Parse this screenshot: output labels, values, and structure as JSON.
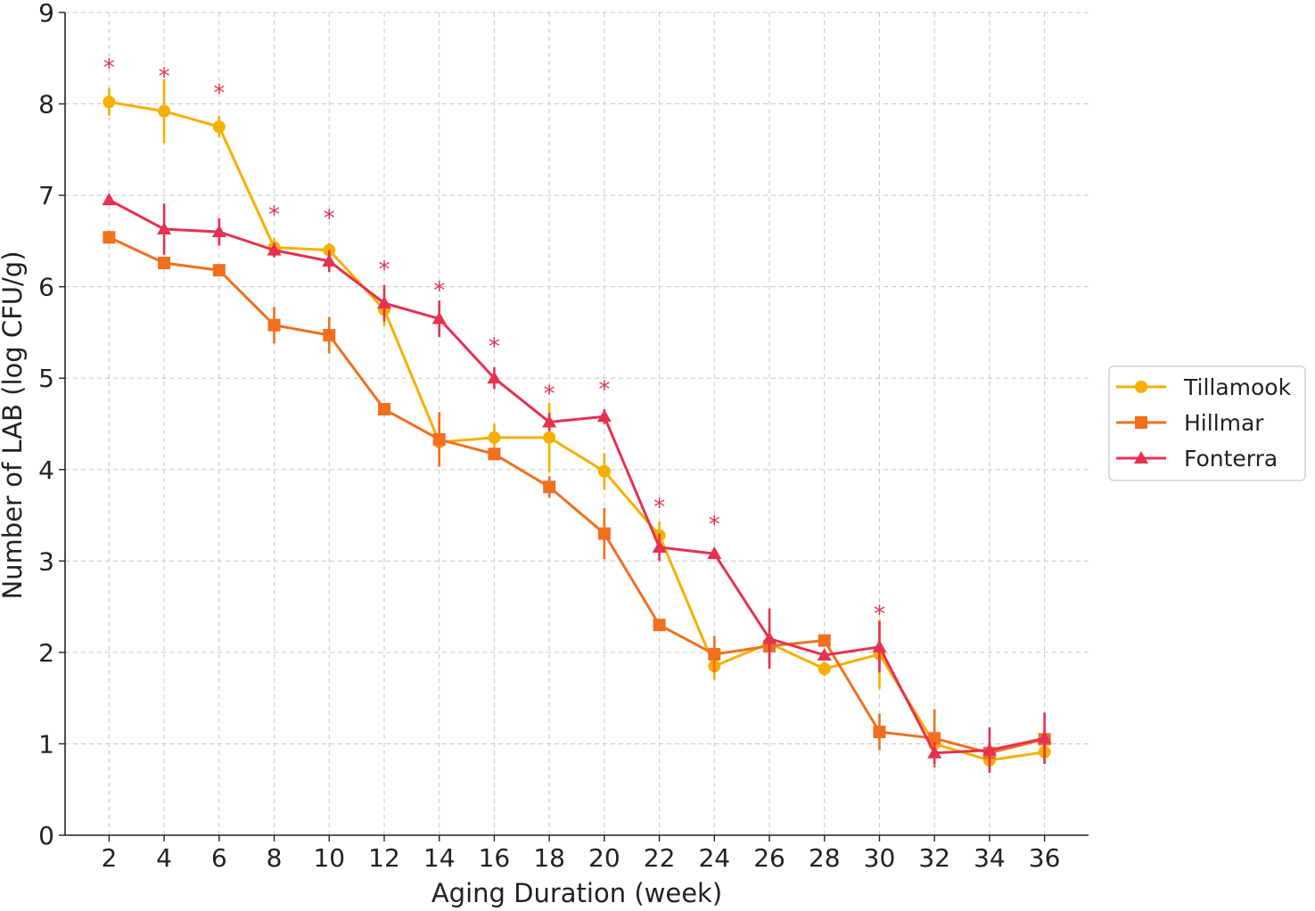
{
  "chart_data": {
    "type": "line",
    "title": "",
    "xlabel": "Aging Duration (week)",
    "ylabel": "Number of LAB (log CFU/g)",
    "x": [
      2,
      4,
      6,
      8,
      10,
      12,
      14,
      16,
      18,
      20,
      22,
      24,
      26,
      28,
      30,
      32,
      34,
      36
    ],
    "xlim": [
      0.4,
      37.6
    ],
    "ylim": [
      0,
      9
    ],
    "xticks": [
      2,
      4,
      6,
      8,
      10,
      12,
      14,
      16,
      18,
      20,
      22,
      24,
      26,
      28,
      30,
      32,
      34,
      36
    ],
    "yticks": [
      0,
      1,
      2,
      3,
      4,
      5,
      6,
      7,
      8,
      9
    ],
    "grid": true,
    "legend_position": "center-right, outside plot",
    "series": [
      {
        "name": "Tillamook",
        "color": "#f5b000",
        "marker": "circle",
        "values": [
          8.02,
          7.92,
          7.75,
          6.43,
          6.4,
          5.75,
          4.3,
          4.35,
          4.35,
          3.98,
          3.28,
          1.85,
          2.1,
          1.82,
          1.98,
          1.0,
          0.82,
          0.91
        ],
        "errors": [
          0.15,
          0.35,
          0.12,
          0.1,
          0.08,
          0.18,
          0.15,
          0.15,
          0.38,
          0.2,
          0.15,
          0.15,
          0.1,
          0.08,
          0.38,
          0.12,
          0.1,
          0.1
        ]
      },
      {
        "name": "Hillmar",
        "color": "#f07020",
        "marker": "square",
        "values": [
          6.54,
          6.26,
          6.18,
          5.58,
          5.47,
          4.66,
          4.33,
          4.17,
          3.81,
          3.3,
          2.3,
          1.98,
          2.07,
          2.13,
          1.13,
          1.06,
          0.9,
          1.05
        ],
        "errors": [
          0.07,
          0.06,
          0.05,
          0.2,
          0.2,
          0.05,
          0.3,
          0.07,
          0.12,
          0.28,
          0.06,
          0.2,
          0.2,
          0.06,
          0.2,
          0.32,
          0.12,
          0.1
        ]
      },
      {
        "name": "Fonterra",
        "color": "#e63150",
        "marker": "triangle",
        "values": [
          6.95,
          6.63,
          6.6,
          6.4,
          6.28,
          5.82,
          5.65,
          5.0,
          4.52,
          4.58,
          3.15,
          3.08,
          2.15,
          1.97,
          2.06,
          0.9,
          0.93,
          1.06
        ],
        "errors": [
          0.04,
          0.28,
          0.15,
          0.08,
          0.12,
          0.2,
          0.2,
          0.12,
          0.1,
          0.08,
          0.15,
          0.05,
          0.33,
          0.06,
          0.28,
          0.12,
          0.25,
          0.28
        ]
      }
    ],
    "significance": {
      "symbol": "*",
      "color": "#e63150",
      "x": [
        2,
        4,
        6,
        8,
        10,
        12,
        14,
        16,
        18,
        20,
        22,
        24,
        30
      ],
      "y": [
        8.43,
        8.33,
        8.15,
        6.82,
        6.78,
        6.22,
        5.99,
        5.38,
        4.86,
        4.91,
        3.62,
        3.43,
        2.45
      ]
    }
  }
}
